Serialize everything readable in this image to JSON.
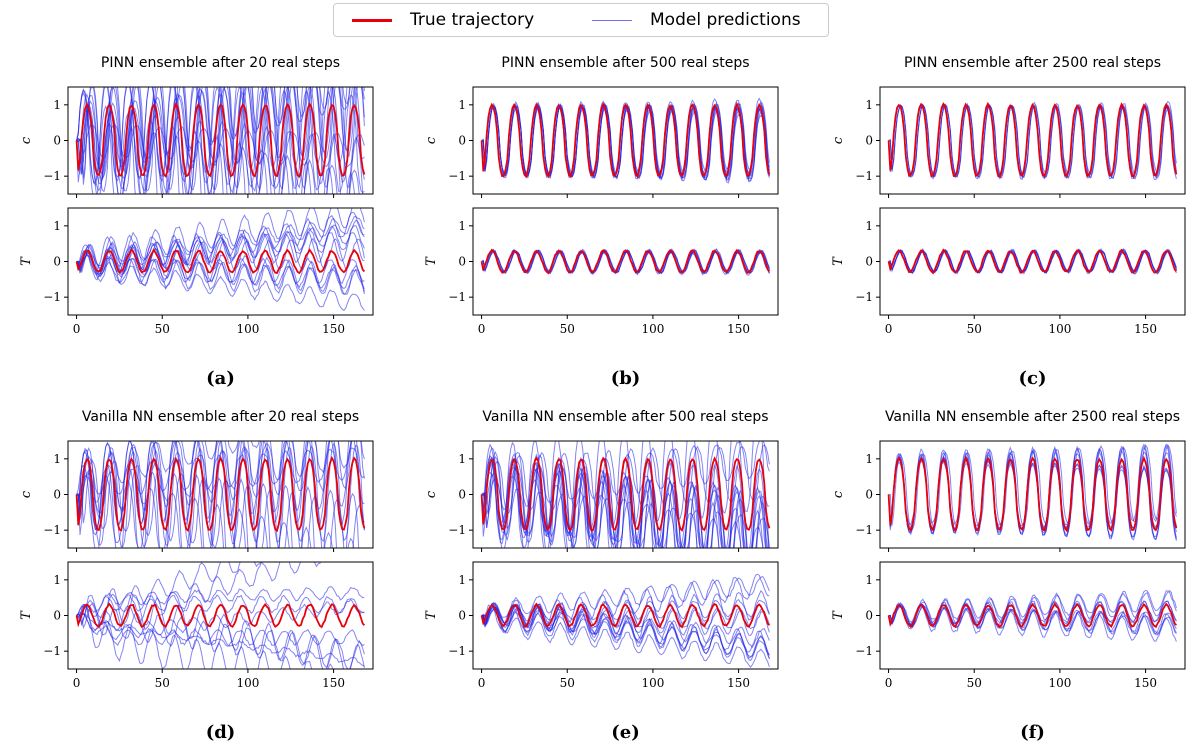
{
  "legend": {
    "true_label": "True trajectory",
    "model_label": "Model predictions",
    "true_color": "#e8000b",
    "model_color": "#2020e8"
  },
  "chart_data": [
    {
      "type": "line",
      "panel": "a",
      "title": "PINN ensemble after 20 real steps",
      "ylabels": [
        "c",
        "T"
      ],
      "xticks": [
        0,
        50,
        100,
        150
      ],
      "yticks": [
        -1,
        0,
        1
      ],
      "ylim": [
        -1.5,
        1.5
      ],
      "xlim": [
        -5,
        173
      ],
      "true_amp": {
        "c": 1.0,
        "T": 0.3
      },
      "ensemble_size": 12,
      "ensemble_spread": {
        "c": 0.95,
        "T": 0.6
      },
      "period": 13,
      "subplot_label": "(a)"
    },
    {
      "type": "line",
      "panel": "b",
      "title": "PINN ensemble after 500 real steps",
      "ylabels": [
        "c",
        "T"
      ],
      "xticks": [
        0,
        50,
        100,
        150
      ],
      "yticks": [
        -1,
        0,
        1
      ],
      "ylim": [
        -1.5,
        1.5
      ],
      "xlim": [
        -5,
        173
      ],
      "true_amp": {
        "c": 1.0,
        "T": 0.3
      },
      "ensemble_size": 8,
      "ensemble_spread": {
        "c": 0.12,
        "T": 0.02
      },
      "period": 13,
      "subplot_label": "(b)"
    },
    {
      "type": "line",
      "panel": "c",
      "title": "PINN ensemble after 2500 real steps",
      "ylabels": [
        "c",
        "T"
      ],
      "xticks": [
        0,
        50,
        100,
        150
      ],
      "yticks": [
        -1,
        0,
        1
      ],
      "ylim": [
        -1.5,
        1.5
      ],
      "xlim": [
        -5,
        173
      ],
      "true_amp": {
        "c": 1.0,
        "T": 0.3
      },
      "ensemble_size": 6,
      "ensemble_spread": {
        "c": 0.05,
        "T": 0.01
      },
      "period": 13,
      "subplot_label": "(c)"
    },
    {
      "type": "line",
      "panel": "d",
      "title": "Vanilla NN ensemble after 20 real steps",
      "ylabels": [
        "c",
        "T"
      ],
      "xticks": [
        0,
        50,
        100,
        150
      ],
      "yticks": [
        -1,
        0,
        1
      ],
      "ylim": [
        -1.5,
        1.5
      ],
      "xlim": [
        -5,
        173
      ],
      "true_amp": {
        "c": 1.0,
        "T": 0.3
      },
      "ensemble_size": 10,
      "ensemble_spread": {
        "c": 1.0,
        "T": 1.2
      },
      "period": 13,
      "subplot_label": "(d)"
    },
    {
      "type": "line",
      "panel": "e",
      "title": "Vanilla NN ensemble after 500 real steps",
      "ylabels": [
        "c",
        "T"
      ],
      "xticks": [
        0,
        50,
        100,
        150
      ],
      "yticks": [
        -1,
        0,
        1
      ],
      "ylim": [
        -1.5,
        1.5
      ],
      "xlim": [
        -5,
        173
      ],
      "true_amp": {
        "c": 1.0,
        "T": 0.3
      },
      "ensemble_size": 12,
      "ensemble_spread": {
        "c": 0.8,
        "T": 0.5
      },
      "period": 13,
      "subplot_label": "(e)"
    },
    {
      "type": "line",
      "panel": "f",
      "title": "Vanilla NN ensemble after 2500 real steps",
      "ylabels": [
        "c",
        "T"
      ],
      "xticks": [
        0,
        50,
        100,
        150
      ],
      "yticks": [
        -1,
        0,
        1
      ],
      "ylim": [
        -1.5,
        1.5
      ],
      "xlim": [
        -5,
        173
      ],
      "true_amp": {
        "c": 1.0,
        "T": 0.3
      },
      "ensemble_size": 8,
      "ensemble_spread": {
        "c": 0.25,
        "T": 0.2
      },
      "period": 13,
      "subplot_label": "(f)"
    }
  ]
}
